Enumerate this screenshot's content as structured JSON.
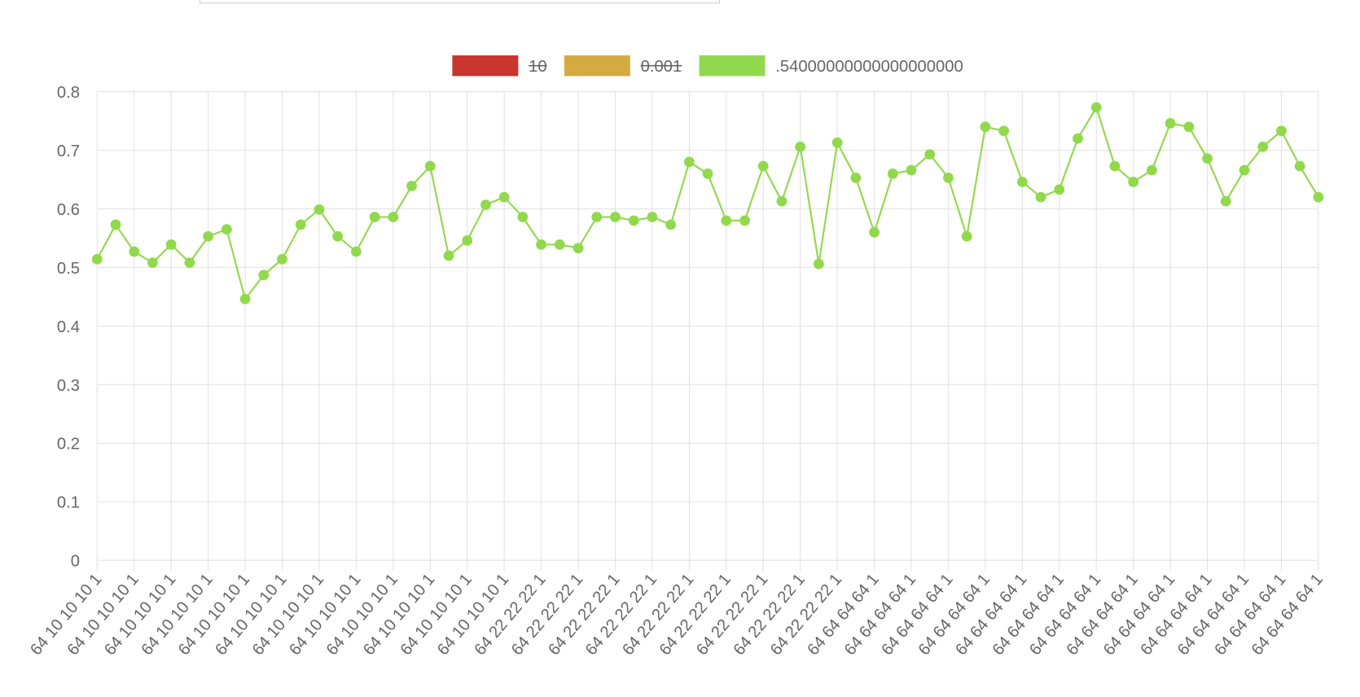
{
  "chart_data": {
    "type": "line",
    "categories": [
      "64 10 10 10 1",
      null,
      "64 10 10 10 1",
      null,
      "64 10 10 10 1",
      null,
      "64 10 10 10 1",
      null,
      "64 10 10 10 1",
      null,
      "64 10 10 10 1",
      null,
      "64 10 10 10 1",
      null,
      "64 10 10 10 1",
      null,
      "64 10 10 10 1",
      null,
      "64 10 10 10 1",
      null,
      "64 10 10 10 1",
      null,
      "64 10 10 10 1",
      null,
      "64 22 22 22 1",
      null,
      "64 22 22 22 1",
      null,
      "64 22 22 22 1",
      null,
      "64 22 22 22 1",
      null,
      "64 22 22 22 1",
      null,
      "64 22 22 22 1",
      null,
      "64 22 22 22 1",
      null,
      "64 22 22 22 1",
      null,
      "64 22 22 22 1",
      null,
      "64 64 64 64 1",
      null,
      "64 64 64 64 1",
      null,
      "64 64 64 64 1",
      null,
      "64 64 64 64 1",
      null,
      "64 64 64 64 1",
      null,
      "64 64 64 64 1",
      null,
      "64 64 64 64 1",
      null,
      "64 64 64 64 1",
      null,
      "64 64 64 64 1",
      null,
      "64 64 64 64 1",
      null,
      "64 64 64 64 1",
      null,
      "64 64 64 64 1",
      null,
      "64 64 64 64 1"
    ],
    "series": [
      {
        "name": "10",
        "color": "#c9352f",
        "hidden": true
      },
      {
        "name": "0.001",
        "color": "#d4ab42",
        "hidden": true
      },
      {
        "name": ".54000000000000000000",
        "color": "#91d94c",
        "values": [
          0.514,
          0.573,
          0.527,
          0.508,
          0.539,
          0.508,
          0.553,
          0.565,
          0.446,
          0.487,
          0.514,
          0.573,
          0.599,
          0.553,
          0.527,
          0.586,
          0.586,
          0.639,
          0.673,
          0.52,
          0.546,
          0.607,
          0.62,
          0.586,
          0.539,
          0.539,
          0.533,
          0.586,
          0.586,
          0.58,
          0.586,
          0.573,
          0.68,
          0.66,
          0.58,
          0.58,
          0.673,
          0.613,
          0.706,
          0.506,
          0.713,
          0.653,
          0.56,
          0.66,
          0.666,
          0.693,
          0.653,
          0.553,
          0.74,
          0.733,
          0.646,
          0.62,
          0.633,
          0.72,
          0.773,
          0.673,
          0.646,
          0.666,
          0.746,
          0.74,
          0.686,
          0.613,
          0.666,
          0.706,
          0.733,
          0.673,
          0.62
        ]
      }
    ],
    "ylim": [
      0,
      0.8
    ],
    "yticks": [
      0,
      0.1,
      0.2,
      0.3,
      0.4,
      0.5,
      0.6,
      0.7,
      0.8
    ],
    "grid": true,
    "legend": "top"
  }
}
